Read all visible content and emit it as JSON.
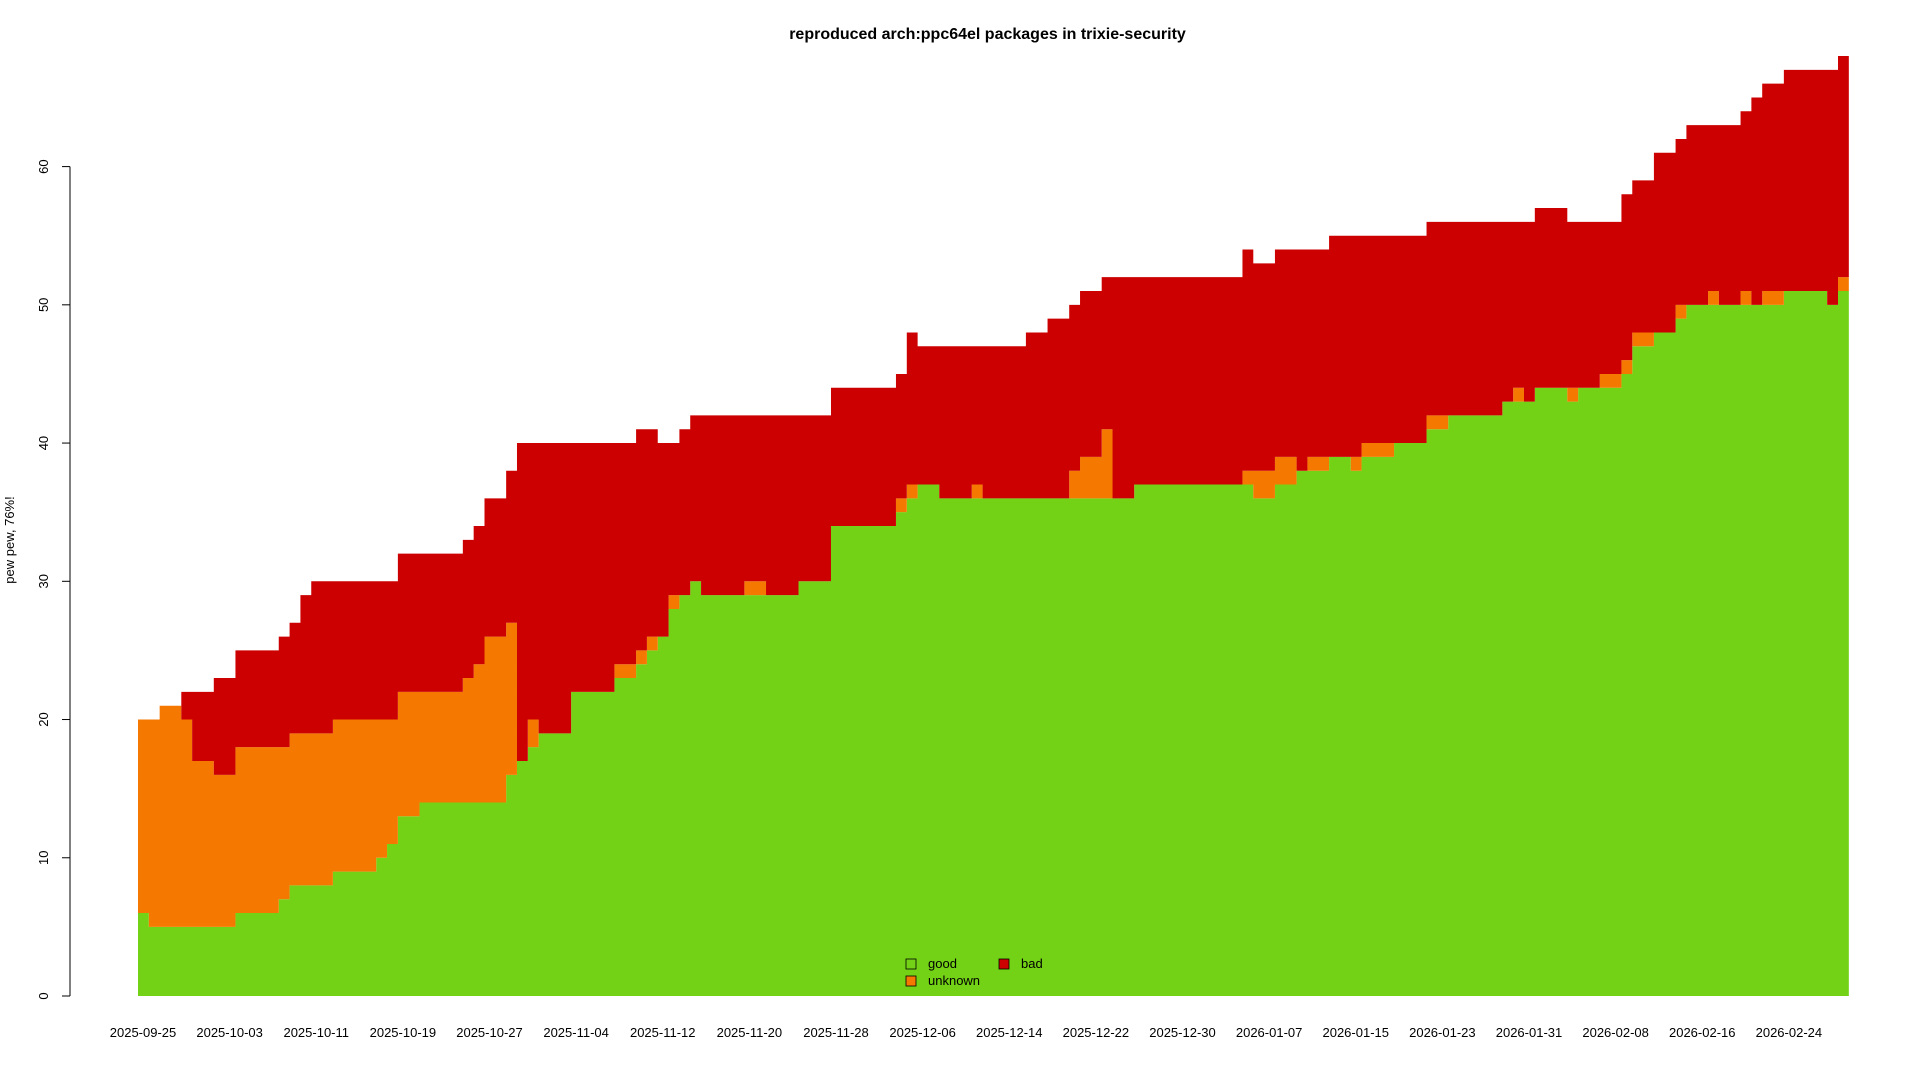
{
  "chart_data": {
    "type": "area",
    "stacked": true,
    "title": "reproduced arch:ppc64el packages in trixie-security",
    "ylabel": "pew pew, 76%!",
    "xlabel": "",
    "ylim": [
      0,
      68
    ],
    "yticks": [
      0,
      10,
      20,
      30,
      40,
      50,
      60
    ],
    "x_tick_labels": [
      "2025-09-25",
      "2025-10-03",
      "2025-10-11",
      "2025-10-19",
      "2025-10-27",
      "2025-11-04",
      "2025-11-12",
      "2025-11-20",
      "2025-11-28",
      "2025-12-06",
      "2025-12-14",
      "2025-12-22",
      "2025-12-30",
      "2026-01-07",
      "2026-01-15",
      "2026-01-23",
      "2026-01-31",
      "2026-02-08",
      "2026-02-16",
      "2026-02-24"
    ],
    "x_start": "2025-09-25",
    "x_end": "2026-03-01",
    "grid": false,
    "legend": {
      "placement": "bottom-center",
      "entries": [
        {
          "name": "good",
          "color": "#73d216"
        },
        {
          "name": "unknown",
          "color": "#f57900"
        },
        {
          "name": "bad",
          "color": "#cc0000"
        }
      ]
    },
    "series": [
      {
        "name": "good",
        "color": "#73d216",
        "points": [
          [
            "2025-09-25",
            6
          ],
          [
            "2025-09-26",
            5
          ],
          [
            "2025-10-04",
            6
          ],
          [
            "2025-10-08",
            7
          ],
          [
            "2025-10-09",
            8
          ],
          [
            "2025-10-13",
            9
          ],
          [
            "2025-10-17",
            10
          ],
          [
            "2025-10-18",
            11
          ],
          [
            "2025-10-19",
            13
          ],
          [
            "2025-10-21",
            14
          ],
          [
            "2025-10-29",
            16
          ],
          [
            "2025-10-30",
            17
          ],
          [
            "2025-10-31",
            18
          ],
          [
            "2025-11-01",
            19
          ],
          [
            "2025-11-04",
            22
          ],
          [
            "2025-11-08",
            23
          ],
          [
            "2025-11-10",
            24
          ],
          [
            "2025-11-11",
            25
          ],
          [
            "2025-11-12",
            26
          ],
          [
            "2025-11-13",
            28
          ],
          [
            "2025-11-14",
            29
          ],
          [
            "2025-11-15",
            30
          ],
          [
            "2025-11-16",
            29
          ],
          [
            "2025-11-22",
            29
          ],
          [
            "2025-11-25",
            30
          ],
          [
            "2025-11-28",
            34
          ],
          [
            "2025-12-04",
            35
          ],
          [
            "2025-12-05",
            36
          ],
          [
            "2025-12-06",
            37
          ],
          [
            "2025-12-08",
            36
          ],
          [
            "2025-12-26",
            37
          ],
          [
            "2026-01-06",
            36
          ],
          [
            "2026-01-08",
            37
          ],
          [
            "2026-01-10",
            38
          ],
          [
            "2026-01-13",
            39
          ],
          [
            "2026-01-15",
            38
          ],
          [
            "2026-01-16",
            39
          ],
          [
            "2026-01-19",
            40
          ],
          [
            "2026-01-22",
            41
          ],
          [
            "2026-01-24",
            42
          ],
          [
            "2026-01-29",
            43
          ],
          [
            "2026-02-01",
            44
          ],
          [
            "2026-02-04",
            43
          ],
          [
            "2026-02-05",
            44
          ],
          [
            "2026-02-09",
            45
          ],
          [
            "2026-02-10",
            47
          ],
          [
            "2026-02-12",
            48
          ],
          [
            "2026-02-14",
            49
          ],
          [
            "2026-02-15",
            50
          ],
          [
            "2026-02-24",
            51
          ],
          [
            "2026-02-28",
            50
          ],
          [
            "2026-03-01",
            51
          ]
        ]
      },
      {
        "name": "unknown",
        "color": "#f57900",
        "points": [
          [
            "2025-09-25",
            14
          ],
          [
            "2025-09-26",
            15
          ],
          [
            "2025-09-27",
            16
          ],
          [
            "2025-09-29",
            15
          ],
          [
            "2025-09-30",
            12
          ],
          [
            "2025-10-02",
            11
          ],
          [
            "2025-10-04",
            12
          ],
          [
            "2025-10-08",
            11
          ],
          [
            "2025-10-09",
            11
          ],
          [
            "2025-10-13",
            11
          ],
          [
            "2025-10-17",
            10
          ],
          [
            "2025-10-18",
            9
          ],
          [
            "2025-10-19",
            9
          ],
          [
            "2025-10-21",
            8
          ],
          [
            "2025-10-25",
            9
          ],
          [
            "2025-10-26",
            10
          ],
          [
            "2025-10-27",
            12
          ],
          [
            "2025-10-29",
            11
          ],
          [
            "2025-10-30",
            0
          ],
          [
            "2025-10-31",
            2
          ],
          [
            "2025-11-01",
            0
          ],
          [
            "2025-11-08",
            1
          ],
          [
            "2025-11-12",
            0
          ],
          [
            "2025-11-13",
            1
          ],
          [
            "2025-11-14",
            0
          ],
          [
            "2025-11-20",
            1
          ],
          [
            "2025-11-22",
            0
          ],
          [
            "2025-12-04",
            1
          ],
          [
            "2025-12-05",
            1
          ],
          [
            "2025-12-06",
            0
          ],
          [
            "2025-12-11",
            1
          ],
          [
            "2025-12-12",
            0
          ],
          [
            "2025-12-20",
            2
          ],
          [
            "2025-12-21",
            3
          ],
          [
            "2025-12-23",
            5
          ],
          [
            "2025-12-24",
            0
          ],
          [
            "2026-01-05",
            1
          ],
          [
            "2026-01-06",
            2
          ],
          [
            "2026-01-08",
            2
          ],
          [
            "2026-01-10",
            0
          ],
          [
            "2026-01-11",
            1
          ],
          [
            "2026-01-13",
            0
          ],
          [
            "2026-01-15",
            1
          ],
          [
            "2026-01-16",
            1
          ],
          [
            "2026-01-19",
            0
          ],
          [
            "2026-01-22",
            1
          ],
          [
            "2026-01-24",
            0
          ],
          [
            "2026-01-30",
            1
          ],
          [
            "2026-01-31",
            0
          ],
          [
            "2026-02-04",
            1
          ],
          [
            "2026-02-05",
            0
          ],
          [
            "2026-02-07",
            1
          ],
          [
            "2026-02-09",
            1
          ],
          [
            "2026-02-10",
            1
          ],
          [
            "2026-02-12",
            0
          ],
          [
            "2026-02-14",
            1
          ],
          [
            "2026-02-15",
            0
          ],
          [
            "2026-02-17",
            1
          ],
          [
            "2026-02-18",
            0
          ],
          [
            "2026-02-20",
            1
          ],
          [
            "2026-02-21",
            0
          ],
          [
            "2026-02-22",
            1
          ],
          [
            "2026-02-24",
            0
          ],
          [
            "2026-02-28",
            0
          ],
          [
            "2026-03-01",
            1
          ]
        ]
      },
      {
        "name": "bad",
        "color": "#cc0000",
        "points": [
          [
            "2025-09-25",
            0
          ],
          [
            "2025-09-29",
            2
          ],
          [
            "2025-09-30",
            5
          ],
          [
            "2025-10-02",
            7
          ],
          [
            "2025-10-04",
            7
          ],
          [
            "2025-10-08",
            8
          ],
          [
            "2025-10-09",
            8
          ],
          [
            "2025-10-10",
            10
          ],
          [
            "2025-10-11",
            11
          ],
          [
            "2025-10-13",
            10
          ],
          [
            "2025-10-17",
            10
          ],
          [
            "2025-10-18",
            10
          ],
          [
            "2025-10-19",
            10
          ],
          [
            "2025-10-21",
            10
          ],
          [
            "2025-10-25",
            10
          ],
          [
            "2025-10-26",
            10
          ],
          [
            "2025-10-27",
            10
          ],
          [
            "2025-10-29",
            11
          ],
          [
            "2025-10-30",
            23
          ],
          [
            "2025-10-31",
            20
          ],
          [
            "2025-11-01",
            21
          ],
          [
            "2025-11-04",
            18
          ],
          [
            "2025-11-08",
            16
          ],
          [
            "2025-11-10",
            16
          ],
          [
            "2025-11-11",
            15
          ],
          [
            "2025-11-12",
            14
          ],
          [
            "2025-11-13",
            11
          ],
          [
            "2025-11-14",
            12
          ],
          [
            "2025-11-15",
            12
          ],
          [
            "2025-11-16",
            13
          ],
          [
            "2025-11-20",
            12
          ],
          [
            "2025-11-22",
            13
          ],
          [
            "2025-11-25",
            12
          ],
          [
            "2025-11-28",
            10
          ],
          [
            "2025-12-04",
            9
          ],
          [
            "2025-12-05",
            11
          ],
          [
            "2025-12-06",
            10
          ],
          [
            "2025-12-08",
            11
          ],
          [
            "2025-12-11",
            10
          ],
          [
            "2025-12-12",
            11
          ],
          [
            "2025-12-16",
            12
          ],
          [
            "2025-12-18",
            13
          ],
          [
            "2025-12-20",
            12
          ],
          [
            "2025-12-21",
            12
          ],
          [
            "2025-12-23",
            11
          ],
          [
            "2025-12-24",
            16
          ],
          [
            "2025-12-26",
            15
          ],
          [
            "2026-01-05",
            16
          ],
          [
            "2026-01-06",
            15
          ],
          [
            "2026-01-08",
            15
          ],
          [
            "2026-01-10",
            16
          ],
          [
            "2026-01-11",
            15
          ],
          [
            "2026-01-13",
            16
          ],
          [
            "2026-01-15",
            16
          ],
          [
            "2026-01-16",
            15
          ],
          [
            "2026-01-19",
            15
          ],
          [
            "2026-01-22",
            14
          ],
          [
            "2026-01-24",
            14
          ],
          [
            "2026-01-29",
            13
          ],
          [
            "2026-01-30",
            12
          ],
          [
            "2026-01-31",
            13
          ],
          [
            "2026-02-04",
            12
          ],
          [
            "2026-02-05",
            12
          ],
          [
            "2026-02-07",
            11
          ],
          [
            "2026-02-09",
            12
          ],
          [
            "2026-02-10",
            11
          ],
          [
            "2026-02-12",
            13
          ],
          [
            "2026-02-14",
            12
          ],
          [
            "2026-02-15",
            13
          ],
          [
            "2026-02-17",
            12
          ],
          [
            "2026-02-18",
            13
          ],
          [
            "2026-02-20",
            13
          ],
          [
            "2026-02-21",
            15
          ],
          [
            "2026-02-22",
            15
          ],
          [
            "2026-02-24",
            16
          ],
          [
            "2026-02-28",
            17
          ],
          [
            "2026-03-01",
            16
          ]
        ]
      }
    ]
  }
}
